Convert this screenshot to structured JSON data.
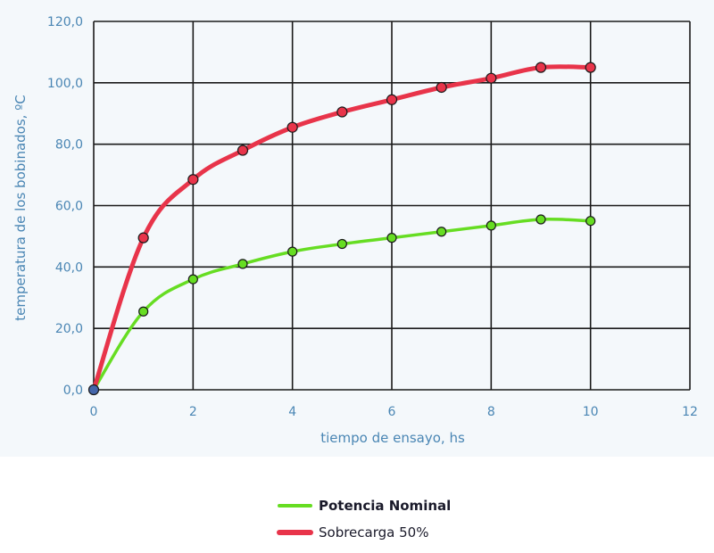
{
  "chart_data": {
    "type": "line",
    "xlabel": "tiempo de ensayo, hs",
    "ylabel": "temperatura de los bobinados, ºC",
    "xlim": [
      0,
      12
    ],
    "ylim": [
      0,
      120
    ],
    "x_ticks": [
      "0",
      "2",
      "4",
      "6",
      "8",
      "10",
      "12"
    ],
    "y_ticks": [
      "0,0",
      "20,0",
      "40,0",
      "60,0",
      "80,0",
      "100,0",
      "120,0"
    ],
    "grid": true,
    "legend_position": "bottom-center",
    "series": [
      {
        "name": "Potencia Nominal",
        "color": "#66dd22",
        "x": [
          0,
          1,
          2,
          3,
          4,
          5,
          6,
          7,
          8,
          9,
          10
        ],
        "y": [
          0,
          25.5,
          36,
          41,
          45,
          47.5,
          49.5,
          51.5,
          53.5,
          55.5,
          55
        ]
      },
      {
        "name": "Sobrecarga 50%",
        "color": "#e8344a",
        "x": [
          0,
          1,
          2,
          3,
          4,
          5,
          6,
          7,
          8,
          9,
          10
        ],
        "y": [
          0,
          49.5,
          68.5,
          78,
          85.5,
          90.5,
          94.5,
          98.5,
          101.5,
          105,
          105
        ]
      }
    ],
    "origin_point_color": "#4466aa"
  }
}
